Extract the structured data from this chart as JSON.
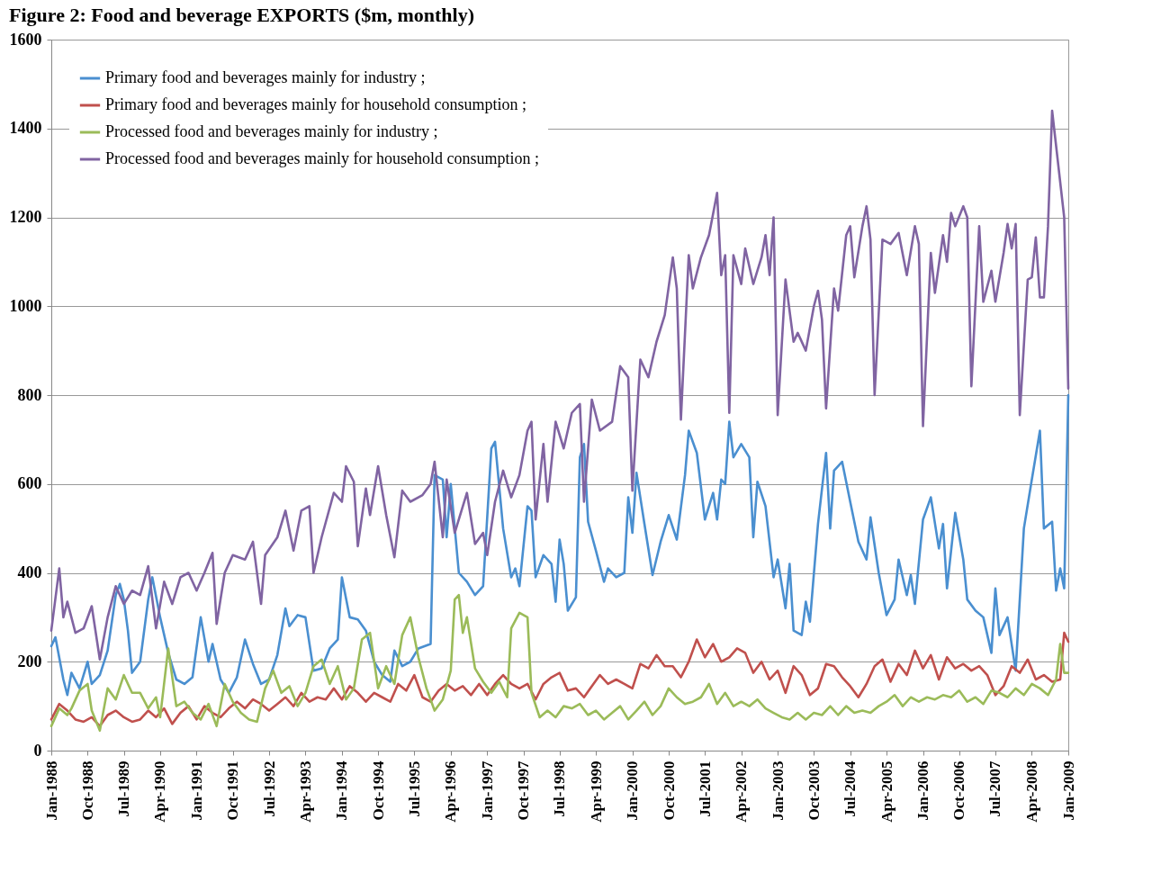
{
  "chart_data": {
    "type": "line",
    "title": "Figure 2: Food and beverage EXPORTS ($m, monthly)",
    "xlim": [
      "1988-01",
      "2009-01"
    ],
    "xticks": [
      {
        "value": "1988-01",
        "label": "Jan-1988"
      },
      {
        "value": "1988-10",
        "label": "Oct-1988"
      },
      {
        "value": "1989-07",
        "label": "Jul-1989"
      },
      {
        "value": "1990-04",
        "label": "Apr-1990"
      },
      {
        "value": "1991-01",
        "label": "Jan-1991"
      },
      {
        "value": "1991-10",
        "label": "Oct-1991"
      },
      {
        "value": "1992-07",
        "label": "Jul-1992"
      },
      {
        "value": "1993-04",
        "label": "Apr-1993"
      },
      {
        "value": "1994-01",
        "label": "Jan-1994"
      },
      {
        "value": "1994-10",
        "label": "Oct-1994"
      },
      {
        "value": "1995-07",
        "label": "Jul-1995"
      },
      {
        "value": "1996-04",
        "label": "Apr-1996"
      },
      {
        "value": "1997-01",
        "label": "Jan-1997"
      },
      {
        "value": "1997-10",
        "label": "Oct-1997"
      },
      {
        "value": "1998-07",
        "label": "Jul-1998"
      },
      {
        "value": "1999-04",
        "label": "Apr-1999"
      },
      {
        "value": "2000-01",
        "label": "Jan-2000"
      },
      {
        "value": "2000-10",
        "label": "Oct-2000"
      },
      {
        "value": "2001-07",
        "label": "Jul-2001"
      },
      {
        "value": "2002-04",
        "label": "Apr-2002"
      },
      {
        "value": "2003-01",
        "label": "Jan-2003"
      },
      {
        "value": "2003-10",
        "label": "Oct-2003"
      },
      {
        "value": "2004-07",
        "label": "Jul-2004"
      },
      {
        "value": "2005-04",
        "label": "Apr-2005"
      },
      {
        "value": "2006-01",
        "label": "Jan-2006"
      },
      {
        "value": "2006-10",
        "label": "Oct-2006"
      },
      {
        "value": "2007-07",
        "label": "Jul-2007"
      },
      {
        "value": "2008-04",
        "label": "Apr-2008"
      },
      {
        "value": "2009-01",
        "label": "Jan-2009"
      }
    ],
    "ylim": [
      0,
      1600
    ],
    "yticks": [
      0,
      200,
      400,
      600,
      800,
      1000,
      1200,
      1400,
      1600
    ],
    "grid": "y",
    "legend": "top left",
    "series": [
      {
        "name": "Primary food and beverages mainly for industry ;",
        "color": "#4a8fd0",
        "x": [
          "1988-01",
          "1988-02",
          "1988-04",
          "1988-05",
          "1988-06",
          "1988-08",
          "1988-10",
          "1988-11",
          "1989-01",
          "1989-03",
          "1989-05",
          "1989-06",
          "1989-07",
          "1989-08",
          "1989-09",
          "1989-11",
          "1990-01",
          "1990-02",
          "1990-04",
          "1990-06",
          "1990-08",
          "1990-10",
          "1990-12",
          "1991-02",
          "1991-04",
          "1991-05",
          "1991-07",
          "1991-09",
          "1991-11",
          "1992-01",
          "1992-03",
          "1992-05",
          "1992-07",
          "1992-09",
          "1992-11",
          "1992-12",
          "1993-02",
          "1993-04",
          "1993-06",
          "1993-08",
          "1993-10",
          "1993-12",
          "1994-01",
          "1994-03",
          "1994-05",
          "1994-07",
          "1994-09",
          "1994-11",
          "1995-01",
          "1995-02",
          "1995-04",
          "1995-06",
          "1995-08",
          "1995-11",
          "1995-12",
          "1996-02",
          "1996-03",
          "1996-04",
          "1996-06",
          "1996-08",
          "1996-10",
          "1996-12",
          "1997-02",
          "1997-03",
          "1997-05",
          "1997-07",
          "1997-08",
          "1997-09",
          "1997-11",
          "1997-12",
          "1998-01",
          "1998-03",
          "1998-05",
          "1998-06",
          "1998-07",
          "1998-08",
          "1998-09",
          "1998-11",
          "1998-12",
          "1999-01",
          "1999-02",
          "1999-04",
          "1999-06",
          "1999-07",
          "1999-09",
          "1999-11",
          "1999-12",
          "2000-01",
          "2000-02",
          "2000-04",
          "2000-06",
          "2000-08",
          "2000-10",
          "2000-12",
          "2001-02",
          "2001-03",
          "2001-05",
          "2001-07",
          "2001-09",
          "2001-10",
          "2001-11",
          "2001-12",
          "2002-01",
          "2002-02",
          "2002-04",
          "2002-06",
          "2002-07",
          "2002-08",
          "2002-10",
          "2002-12",
          "2003-01",
          "2003-03",
          "2003-04",
          "2003-05",
          "2003-07",
          "2003-08",
          "2003-09",
          "2003-11",
          "2004-01",
          "2004-02",
          "2004-03",
          "2004-05",
          "2004-07",
          "2004-09",
          "2004-11",
          "2004-12",
          "2005-02",
          "2005-04",
          "2005-06",
          "2005-07",
          "2005-09",
          "2005-10",
          "2005-11",
          "2006-01",
          "2006-03",
          "2006-05",
          "2006-06",
          "2006-07",
          "2006-09",
          "2006-11",
          "2006-12",
          "2007-02",
          "2007-04",
          "2007-06",
          "2007-07",
          "2007-08",
          "2007-10",
          "2007-12",
          "2008-02",
          "2008-04",
          "2008-06",
          "2008-07",
          "2008-09",
          "2008-10",
          "2008-11",
          "2008-12",
          "2009-01"
        ],
        "values": [
          235,
          255,
          160,
          125,
          175,
          140,
          200,
          150,
          170,
          225,
          350,
          375,
          340,
          270,
          175,
          200,
          340,
          390,
          300,
          220,
          160,
          150,
          165,
          300,
          200,
          240,
          160,
          130,
          165,
          250,
          195,
          150,
          160,
          215,
          320,
          280,
          305,
          300,
          180,
          185,
          230,
          250,
          390,
          300,
          295,
          270,
          200,
          170,
          155,
          225,
          190,
          200,
          230,
          240,
          620,
          610,
          480,
          600,
          400,
          380,
          350,
          370,
          680,
          695,
          500,
          390,
          410,
          370,
          550,
          540,
          390,
          440,
          420,
          335,
          475,
          420,
          315,
          345,
          660,
          690,
          515,
          450,
          380,
          410,
          390,
          400,
          570,
          490,
          625,
          510,
          395,
          470,
          530,
          475,
          620,
          720,
          670,
          520,
          580,
          520,
          610,
          600,
          740,
          660,
          690,
          660,
          480,
          605,
          550,
          390,
          430,
          320,
          420,
          270,
          260,
          335,
          290,
          510,
          670,
          500,
          630,
          650,
          560,
          470,
          430,
          525,
          400,
          305,
          340,
          430,
          350,
          395,
          330,
          520,
          570,
          455,
          510,
          365,
          535,
          430,
          340,
          315,
          300,
          220,
          365,
          260,
          300,
          180,
          500,
          610,
          720,
          500,
          515,
          360,
          410,
          365,
          800
        ]
      },
      {
        "name": "Primary food and beverages mainly for household consumption ;",
        "color": "#c0504d",
        "x": [
          "1988-01",
          "1988-03",
          "1988-05",
          "1988-07",
          "1988-09",
          "1988-11",
          "1989-01",
          "1989-03",
          "1989-05",
          "1989-07",
          "1989-09",
          "1989-11",
          "1990-01",
          "1990-03",
          "1990-05",
          "1990-07",
          "1990-09",
          "1990-11",
          "1991-01",
          "1991-03",
          "1991-05",
          "1991-07",
          "1991-09",
          "1991-11",
          "1992-01",
          "1992-03",
          "1992-05",
          "1992-07",
          "1992-09",
          "1992-11",
          "1993-01",
          "1993-03",
          "1993-05",
          "1993-07",
          "1993-09",
          "1993-11",
          "1994-01",
          "1994-03",
          "1994-05",
          "1994-07",
          "1994-09",
          "1994-11",
          "1995-01",
          "1995-03",
          "1995-05",
          "1995-07",
          "1995-09",
          "1995-11",
          "1996-01",
          "1996-03",
          "1996-05",
          "1996-07",
          "1996-09",
          "1996-11",
          "1997-01",
          "1997-03",
          "1997-05",
          "1997-07",
          "1997-09",
          "1997-11",
          "1998-01",
          "1998-03",
          "1998-05",
          "1998-07",
          "1998-09",
          "1998-11",
          "1999-01",
          "1999-03",
          "1999-05",
          "1999-07",
          "1999-09",
          "1999-11",
          "2000-01",
          "2000-03",
          "2000-05",
          "2000-07",
          "2000-09",
          "2000-11",
          "2001-01",
          "2001-03",
          "2001-05",
          "2001-07",
          "2001-09",
          "2001-11",
          "2002-01",
          "2002-03",
          "2002-05",
          "2002-07",
          "2002-09",
          "2002-11",
          "2003-01",
          "2003-03",
          "2003-05",
          "2003-07",
          "2003-09",
          "2003-11",
          "2004-01",
          "2004-03",
          "2004-05",
          "2004-07",
          "2004-09",
          "2004-11",
          "2005-01",
          "2005-03",
          "2005-05",
          "2005-07",
          "2005-09",
          "2005-11",
          "2006-01",
          "2006-03",
          "2006-05",
          "2006-07",
          "2006-09",
          "2006-11",
          "2007-01",
          "2007-03",
          "2007-05",
          "2007-07",
          "2007-09",
          "2007-11",
          "2008-01",
          "2008-03",
          "2008-05",
          "2008-07",
          "2008-09",
          "2008-11",
          "2008-12",
          "2009-01"
        ],
        "values": [
          70,
          105,
          90,
          70,
          65,
          75,
          55,
          80,
          90,
          75,
          65,
          70,
          90,
          75,
          95,
          60,
          85,
          100,
          70,
          100,
          85,
          75,
          95,
          110,
          95,
          115,
          105,
          90,
          105,
          120,
          100,
          130,
          110,
          120,
          115,
          140,
          115,
          145,
          130,
          110,
          130,
          120,
          110,
          150,
          135,
          170,
          120,
          110,
          135,
          150,
          135,
          145,
          125,
          150,
          125,
          150,
          170,
          150,
          140,
          150,
          115,
          150,
          165,
          175,
          135,
          140,
          120,
          145,
          170,
          150,
          160,
          150,
          140,
          195,
          185,
          215,
          190,
          190,
          165,
          200,
          250,
          210,
          240,
          200,
          210,
          230,
          220,
          175,
          200,
          160,
          180,
          130,
          190,
          170,
          125,
          140,
          195,
          190,
          165,
          145,
          120,
          150,
          190,
          205,
          155,
          195,
          170,
          225,
          185,
          215,
          160,
          210,
          185,
          195,
          180,
          190,
          170,
          125,
          145,
          190,
          175,
          205,
          160,
          170,
          155,
          160,
          265,
          245
        ]
      },
      {
        "name": "Processed food and beverages mainly for industry ;",
        "color": "#9bbb59",
        "x": [
          "1988-01",
          "1988-03",
          "1988-05",
          "1988-06",
          "1988-08",
          "1988-10",
          "1988-11",
          "1989-01",
          "1989-03",
          "1989-05",
          "1989-07",
          "1989-09",
          "1989-11",
          "1990-01",
          "1990-03",
          "1990-04",
          "1990-06",
          "1990-08",
          "1990-10",
          "1990-12",
          "1991-02",
          "1991-04",
          "1991-06",
          "1991-08",
          "1991-10",
          "1991-12",
          "1992-02",
          "1992-04",
          "1992-06",
          "1992-08",
          "1992-10",
          "1992-12",
          "1993-02",
          "1993-04",
          "1993-06",
          "1993-08",
          "1993-10",
          "1993-12",
          "1994-02",
          "1994-04",
          "1994-06",
          "1994-08",
          "1994-10",
          "1994-12",
          "1995-02",
          "1995-04",
          "1995-06",
          "1995-08",
          "1995-10",
          "1995-12",
          "1996-02",
          "1996-04",
          "1996-05",
          "1996-06",
          "1996-07",
          "1996-08",
          "1996-10",
          "1996-12",
          "1997-02",
          "1997-04",
          "1997-06",
          "1997-07",
          "1997-09",
          "1997-11",
          "1997-12",
          "1998-02",
          "1998-04",
          "1998-06",
          "1998-08",
          "1998-10",
          "1998-12",
          "1999-02",
          "1999-04",
          "1999-06",
          "1999-08",
          "1999-10",
          "1999-12",
          "2000-02",
          "2000-04",
          "2000-06",
          "2000-08",
          "2000-10",
          "2000-12",
          "2001-02",
          "2001-04",
          "2001-06",
          "2001-08",
          "2001-10",
          "2001-12",
          "2002-02",
          "2002-04",
          "2002-06",
          "2002-08",
          "2002-10",
          "2002-12",
          "2003-02",
          "2003-04",
          "2003-06",
          "2003-08",
          "2003-10",
          "2003-12",
          "2004-02",
          "2004-04",
          "2004-06",
          "2004-08",
          "2004-10",
          "2004-12",
          "2005-02",
          "2005-04",
          "2005-06",
          "2005-08",
          "2005-10",
          "2005-12",
          "2006-02",
          "2006-04",
          "2006-06",
          "2006-08",
          "2006-10",
          "2006-12",
          "2007-02",
          "2007-04",
          "2007-06",
          "2007-08",
          "2007-10",
          "2007-12",
          "2008-02",
          "2008-04",
          "2008-06",
          "2008-08",
          "2008-10",
          "2008-11",
          "2008-12",
          "2009-01"
        ],
        "values": [
          55,
          95,
          80,
          95,
          135,
          150,
          90,
          45,
          140,
          115,
          170,
          130,
          130,
          95,
          120,
          75,
          230,
          100,
          110,
          85,
          70,
          105,
          55,
          150,
          110,
          85,
          70,
          65,
          140,
          180,
          130,
          145,
          100,
          130,
          190,
          205,
          150,
          190,
          115,
          140,
          250,
          265,
          140,
          190,
          150,
          260,
          300,
          210,
          140,
          90,
          115,
          180,
          340,
          350,
          265,
          300,
          185,
          155,
          130,
          155,
          120,
          275,
          310,
          300,
          130,
          75,
          90,
          75,
          100,
          95,
          105,
          80,
          90,
          70,
          85,
          100,
          70,
          90,
          110,
          80,
          100,
          140,
          120,
          105,
          110,
          120,
          150,
          105,
          130,
          100,
          110,
          100,
          115,
          95,
          85,
          75,
          70,
          85,
          70,
          85,
          80,
          100,
          80,
          100,
          85,
          90,
          85,
          100,
          110,
          125,
          100,
          120,
          110,
          120,
          115,
          125,
          120,
          135,
          110,
          120,
          105,
          135,
          130,
          120,
          140,
          125,
          150,
          140,
          125,
          160,
          240,
          175,
          175
        ]
      },
      {
        "name": "Processed food and beverages mainly for household consumption ;",
        "color": "#8064a2",
        "x": [
          "1988-01",
          "1988-03",
          "1988-04",
          "1988-05",
          "1988-07",
          "1988-09",
          "1988-11",
          "1989-01",
          "1989-03",
          "1989-05",
          "1989-07",
          "1989-09",
          "1989-11",
          "1990-01",
          "1990-03",
          "1990-05",
          "1990-07",
          "1990-09",
          "1990-11",
          "1991-01",
          "1991-03",
          "1991-05",
          "1991-06",
          "1991-08",
          "1991-10",
          "1992-01",
          "1992-03",
          "1992-05",
          "1992-06",
          "1992-09",
          "1992-11",
          "1993-01",
          "1993-03",
          "1993-05",
          "1993-06",
          "1993-08",
          "1993-11",
          "1994-01",
          "1994-02",
          "1994-04",
          "1994-05",
          "1994-07",
          "1994-08",
          "1994-10",
          "1994-12",
          "1995-02",
          "1995-04",
          "1995-06",
          "1995-09",
          "1995-11",
          "1995-12",
          "1996-02",
          "1996-03",
          "1996-05",
          "1996-08",
          "1996-10",
          "1996-12",
          "1997-01",
          "1997-03",
          "1997-05",
          "1997-07",
          "1997-09",
          "1997-11",
          "1997-12",
          "1998-01",
          "1998-03",
          "1998-04",
          "1998-06",
          "1998-08",
          "1998-10",
          "1998-12",
          "1999-01",
          "1999-03",
          "1999-05",
          "1999-08",
          "1999-10",
          "1999-12",
          "2000-01",
          "2000-03",
          "2000-05",
          "2000-07",
          "2000-09",
          "2000-11",
          "2000-12",
          "2001-01",
          "2001-03",
          "2001-04",
          "2001-06",
          "2001-08",
          "2001-10",
          "2001-11",
          "2001-12",
          "2002-01",
          "2002-02",
          "2002-04",
          "2002-05",
          "2002-07",
          "2002-09",
          "2002-10",
          "2002-11",
          "2002-12",
          "2003-01",
          "2003-03",
          "2003-05",
          "2003-06",
          "2003-08",
          "2003-10",
          "2003-11",
          "2003-12",
          "2004-01",
          "2004-03",
          "2004-04",
          "2004-06",
          "2004-07",
          "2004-08",
          "2004-10",
          "2004-11",
          "2004-12",
          "2005-01",
          "2005-03",
          "2005-05",
          "2005-07",
          "2005-09",
          "2005-11",
          "2005-12",
          "2006-01",
          "2006-03",
          "2006-04",
          "2006-06",
          "2006-07",
          "2006-08",
          "2006-09",
          "2006-11",
          "2006-12",
          "2007-01",
          "2007-03",
          "2007-04",
          "2007-06",
          "2007-07",
          "2007-09",
          "2007-10",
          "2007-11",
          "2007-12",
          "2008-01",
          "2008-03",
          "2008-04",
          "2008-05",
          "2008-06",
          "2008-07",
          "2008-08",
          "2008-09",
          "2008-12",
          "2009-01"
        ],
        "values": [
          270,
          410,
          300,
          335,
          265,
          275,
          325,
          205,
          300,
          370,
          330,
          360,
          350,
          415,
          275,
          380,
          330,
          390,
          400,
          360,
          400,
          445,
          285,
          400,
          440,
          430,
          470,
          330,
          440,
          480,
          540,
          450,
          540,
          550,
          400,
          480,
          580,
          560,
          640,
          605,
          460,
          590,
          530,
          640,
          530,
          435,
          585,
          560,
          575,
          600,
          650,
          480,
          610,
          490,
          580,
          465,
          490,
          440,
          560,
          630,
          570,
          620,
          720,
          740,
          520,
          690,
          560,
          740,
          680,
          760,
          780,
          560,
          790,
          720,
          740,
          865,
          840,
          585,
          880,
          840,
          920,
          980,
          1110,
          1040,
          745,
          1115,
          1040,
          1110,
          1160,
          1255,
          1070,
          1115,
          760,
          1115,
          1050,
          1130,
          1050,
          1110,
          1160,
          1070,
          1200,
          755,
          1060,
          920,
          940,
          900,
          1000,
          1035,
          970,
          770,
          1040,
          990,
          1160,
          1180,
          1065,
          1180,
          1225,
          1150,
          800,
          1150,
          1140,
          1165,
          1070,
          1180,
          1140,
          730,
          1120,
          1030,
          1160,
          1100,
          1210,
          1180,
          1225,
          1200,
          820,
          1180,
          1010,
          1080,
          1010,
          1120,
          1185,
          1130,
          1185,
          755,
          1060,
          1065,
          1155,
          1020,
          1020,
          1180,
          1440,
          1200,
          815
        ]
      }
    ]
  }
}
